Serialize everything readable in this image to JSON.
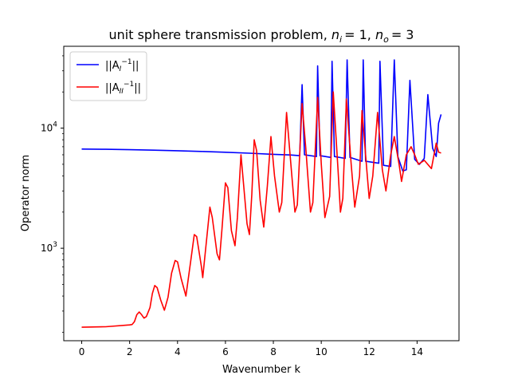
{
  "chart_data": {
    "type": "line",
    "title": "unit sphere transmission problem, ",
    "title_math": [
      {
        "base": "n",
        "sub": "i",
        "eq": "= 1"
      },
      {
        "base": "n",
        "sub": "o",
        "eq": "= 3"
      }
    ],
    "xlabel": "Wavenumber k",
    "ylabel": "Operator norm",
    "xlim": [
      -0.75,
      15.75
    ],
    "ylim": [
      170,
      48000
    ],
    "yscale": "log",
    "x_ticks": [
      0,
      2,
      4,
      6,
      8,
      10,
      12,
      14
    ],
    "y_ticks": [
      {
        "value": 1000,
        "base": "10",
        "exp": "3"
      },
      {
        "value": 10000,
        "base": "10",
        "exp": "4"
      }
    ],
    "grid": false,
    "legend_position": "top-left",
    "series": [
      {
        "name": "||A_I^{-1}||",
        "legend": {
          "pre": "||A",
          "sub": "I",
          "sup": "−1",
          "post": "||"
        },
        "color": "#0000ff",
        "points": [
          [
            0.0,
            6700
          ],
          [
            1.0,
            6660
          ],
          [
            2.0,
            6610
          ],
          [
            3.0,
            6550
          ],
          [
            4.0,
            6480
          ],
          [
            5.0,
            6400
          ],
          [
            6.0,
            6300
          ],
          [
            7.0,
            6180
          ],
          [
            8.0,
            6050
          ],
          [
            8.7,
            5980
          ],
          [
            9.1,
            5900
          ],
          [
            9.2,
            23000
          ],
          [
            9.3,
            6000
          ],
          [
            9.8,
            5800
          ],
          [
            9.85,
            33000
          ],
          [
            9.95,
            5900
          ],
          [
            10.4,
            5700
          ],
          [
            10.45,
            36000
          ],
          [
            10.55,
            5800
          ],
          [
            11.0,
            5600
          ],
          [
            11.08,
            37000
          ],
          [
            11.2,
            5700
          ],
          [
            11.7,
            5300
          ],
          [
            11.75,
            37000
          ],
          [
            11.85,
            5300
          ],
          [
            12.4,
            5100
          ],
          [
            12.45,
            36000
          ],
          [
            12.6,
            4900
          ],
          [
            12.9,
            4800
          ],
          [
            13.05,
            37000
          ],
          [
            13.2,
            5800
          ],
          [
            13.4,
            4400
          ],
          [
            13.55,
            4500
          ],
          [
            13.7,
            25000
          ],
          [
            13.9,
            5500
          ],
          [
            14.1,
            5000
          ],
          [
            14.3,
            5600
          ],
          [
            14.45,
            19000
          ],
          [
            14.65,
            6800
          ],
          [
            14.8,
            5800
          ],
          [
            14.9,
            11000
          ],
          [
            15.0,
            13000
          ]
        ]
      },
      {
        "name": "||A_II^{-1}||",
        "legend": {
          "pre": "||A",
          "sub": "II",
          "sup": "−1",
          "post": "||"
        },
        "color": "#ff0000",
        "points": [
          [
            0.0,
            220
          ],
          [
            1.0,
            222
          ],
          [
            2.0,
            230
          ],
          [
            2.1,
            232
          ],
          [
            2.2,
            245
          ],
          [
            2.3,
            280
          ],
          [
            2.4,
            295
          ],
          [
            2.5,
            280
          ],
          [
            2.6,
            262
          ],
          [
            2.7,
            270
          ],
          [
            2.85,
            320
          ],
          [
            2.95,
            420
          ],
          [
            3.05,
            490
          ],
          [
            3.15,
            470
          ],
          [
            3.3,
            370
          ],
          [
            3.45,
            305
          ],
          [
            3.6,
            390
          ],
          [
            3.75,
            620
          ],
          [
            3.9,
            790
          ],
          [
            4.0,
            770
          ],
          [
            4.15,
            560
          ],
          [
            4.35,
            400
          ],
          [
            4.55,
            780
          ],
          [
            4.7,
            1300
          ],
          [
            4.8,
            1250
          ],
          [
            5.0,
            700
          ],
          [
            5.05,
            570
          ],
          [
            5.25,
            1400
          ],
          [
            5.35,
            2200
          ],
          [
            5.45,
            1800
          ],
          [
            5.65,
            900
          ],
          [
            5.75,
            800
          ],
          [
            5.85,
            1400
          ],
          [
            6.0,
            3500
          ],
          [
            6.1,
            3200
          ],
          [
            6.25,
            1400
          ],
          [
            6.4,
            1050
          ],
          [
            6.5,
            1800
          ],
          [
            6.65,
            6000
          ],
          [
            6.75,
            3500
          ],
          [
            6.9,
            1600
          ],
          [
            7.0,
            1300
          ],
          [
            7.1,
            2800
          ],
          [
            7.2,
            8000
          ],
          [
            7.3,
            6500
          ],
          [
            7.45,
            2500
          ],
          [
            7.6,
            1500
          ],
          [
            7.75,
            3300
          ],
          [
            7.9,
            8500
          ],
          [
            8.05,
            4000
          ],
          [
            8.25,
            2000
          ],
          [
            8.35,
            2400
          ],
          [
            8.55,
            13500
          ],
          [
            8.75,
            4500
          ],
          [
            8.9,
            2000
          ],
          [
            9.0,
            2300
          ],
          [
            9.2,
            16000
          ],
          [
            9.35,
            7000
          ],
          [
            9.55,
            2000
          ],
          [
            9.65,
            2400
          ],
          [
            9.85,
            18000
          ],
          [
            10.0,
            5000
          ],
          [
            10.15,
            1800
          ],
          [
            10.35,
            2700
          ],
          [
            10.5,
            20000
          ],
          [
            10.7,
            4500
          ],
          [
            10.8,
            2000
          ],
          [
            10.9,
            2600
          ],
          [
            11.05,
            17500
          ],
          [
            11.25,
            5000
          ],
          [
            11.4,
            2200
          ],
          [
            11.6,
            4000
          ],
          [
            11.7,
            14000
          ],
          [
            11.9,
            4500
          ],
          [
            12.0,
            2600
          ],
          [
            12.15,
            4000
          ],
          [
            12.35,
            13500
          ],
          [
            12.55,
            4500
          ],
          [
            12.7,
            3000
          ],
          [
            12.9,
            6000
          ],
          [
            13.05,
            8500
          ],
          [
            13.25,
            5000
          ],
          [
            13.35,
            3600
          ],
          [
            13.55,
            6000
          ],
          [
            13.75,
            7000
          ],
          [
            13.9,
            6000
          ],
          [
            14.05,
            5000
          ],
          [
            14.3,
            5400
          ],
          [
            14.6,
            4600
          ],
          [
            14.8,
            7500
          ],
          [
            14.9,
            6300
          ],
          [
            15.0,
            6200
          ]
        ]
      }
    ]
  }
}
